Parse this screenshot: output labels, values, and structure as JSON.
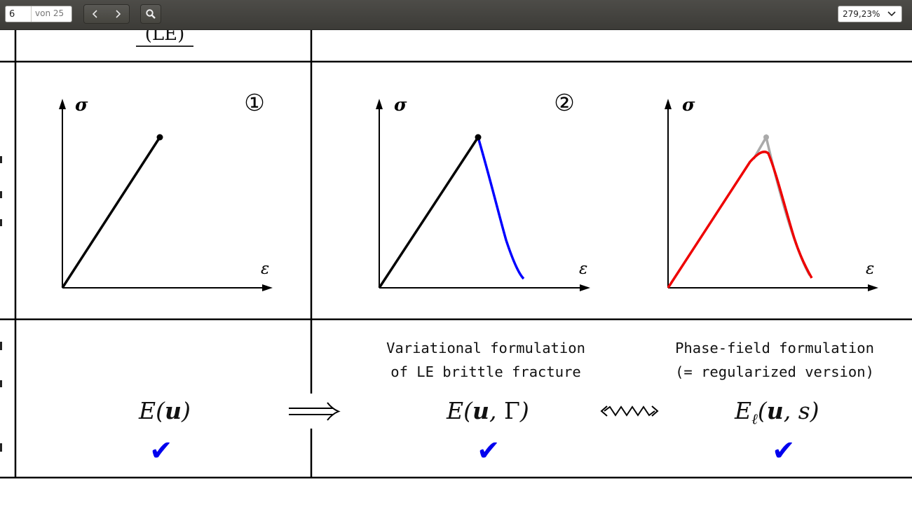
{
  "toolbar": {
    "page_current": "6",
    "page_total": "von 25",
    "zoom": "279,23%",
    "icons": [
      "chevron-left-icon",
      "chevron-right-icon",
      "search-icon",
      "chevron-down-icon"
    ]
  },
  "document": {
    "top_label": "(LE)",
    "charts": [
      {
        "ylabel": "σ",
        "xlabel": "ε",
        "marker": "①"
      },
      {
        "ylabel": "σ",
        "xlabel": "ε",
        "marker": "②"
      },
      {
        "ylabel": "σ",
        "xlabel": "ε",
        "marker": ""
      }
    ],
    "variational_title": "Variational formulation\nof LE brittle fracture",
    "phasefield_title": "Phase-field formulation\n(= regularized version)",
    "formula_le": "E(u)",
    "implies": "⟹",
    "formula_var": "E(u, Γ)",
    "squiggle": "⇜⇝",
    "formula_pf": "Eℓ(u, s)",
    "checkmark": "✔",
    "colors": {
      "linear": "#000000",
      "softening": "#0000ff",
      "phasefield": "#ee0000",
      "sharp": "#aaaaaa",
      "check": "#0000ee"
    }
  }
}
